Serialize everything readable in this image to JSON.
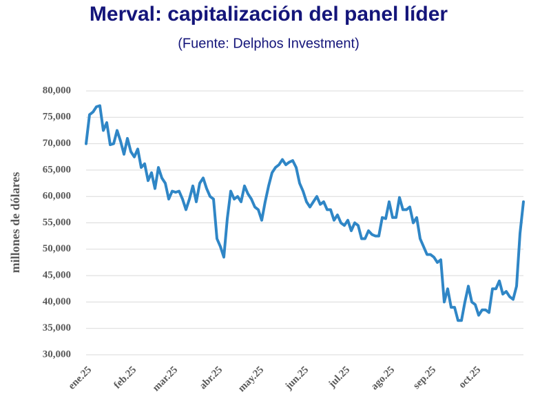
{
  "chart_data": {
    "type": "line",
    "title": "Merval: capitalización del panel líder",
    "subtitle": "(Fuente: Delphos Investment)",
    "y_label": "millones de dólares",
    "categories": [
      "ene.25",
      null,
      null,
      null,
      null,
      null,
      null,
      null,
      null,
      null,
      null,
      null,
      null,
      "feb.25",
      null,
      null,
      null,
      null,
      null,
      null,
      null,
      null,
      null,
      null,
      null,
      "mar.25",
      null,
      null,
      null,
      null,
      null,
      null,
      null,
      null,
      null,
      null,
      null,
      null,
      "abr.25",
      null,
      null,
      null,
      null,
      null,
      null,
      null,
      null,
      null,
      null,
      null,
      "may.25",
      null,
      null,
      null,
      null,
      null,
      null,
      null,
      null,
      null,
      null,
      null,
      null,
      "jun.25",
      null,
      null,
      null,
      null,
      null,
      null,
      null,
      null,
      null,
      null,
      null,
      "jul.25",
      null,
      null,
      null,
      null,
      null,
      null,
      null,
      null,
      null,
      null,
      null,
      null,
      "ago.25",
      null,
      null,
      null,
      null,
      null,
      null,
      null,
      null,
      null,
      null,
      null,
      "sep.25",
      null,
      null,
      null,
      null,
      null,
      null,
      null,
      null,
      null,
      null,
      null,
      null,
      "oct.25",
      null,
      null,
      null,
      null,
      null,
      null,
      null,
      null,
      null,
      null,
      null,
      null,
      null,
      null
    ],
    "series": [
      {
        "name": "Merval",
        "color": "#2f86c6",
        "values": [
          70000,
          75500,
          76000,
          77000,
          77200,
          72500,
          74000,
          69800,
          70000,
          72500,
          70500,
          68000,
          71000,
          68500,
          67500,
          69000,
          65500,
          66200,
          63000,
          64500,
          61500,
          65500,
          63500,
          62500,
          59500,
          61000,
          60800,
          61000,
          59500,
          57500,
          59500,
          62000,
          59000,
          62500,
          63500,
          61500,
          60000,
          59500,
          52000,
          50500,
          48500,
          55800,
          61000,
          59500,
          60000,
          59000,
          62000,
          60500,
          59500,
          58000,
          57500,
          55500,
          59000,
          62000,
          64500,
          65500,
          66000,
          67000,
          66000,
          66500,
          66800,
          65500,
          62500,
          61000,
          59000,
          58000,
          59000,
          60000,
          58500,
          59000,
          57500,
          57500,
          55500,
          56500,
          55000,
          54500,
          55500,
          53500,
          55000,
          54500,
          52000,
          52000,
          53500,
          52800,
          52500,
          52500,
          56000,
          55800,
          59000,
          56000,
          56000,
          59800,
          57500,
          57500,
          58000,
          55000,
          56000,
          52000,
          50500,
          49000,
          49000,
          48500,
          47500,
          48000,
          40000,
          42500,
          39000,
          39000,
          36500,
          36500,
          40000,
          43000,
          40000,
          39500,
          37500,
          38500,
          38500,
          38000,
          42500,
          42500,
          44000,
          41500,
          42000,
          41000,
          40500,
          43000,
          53000,
          59000
        ]
      }
    ],
    "ylim": [
      30000,
      80000
    ],
    "yticks": [
      {
        "value": 30000,
        "label": "30,000"
      },
      {
        "value": 35000,
        "label": "35,000"
      },
      {
        "value": 40000,
        "label": "40,000"
      },
      {
        "value": 45000,
        "label": "45,000"
      },
      {
        "value": 50000,
        "label": "50,000"
      },
      {
        "value": 55000,
        "label": "55,000"
      },
      {
        "value": 60000,
        "label": "60,000"
      },
      {
        "value": 65000,
        "label": "65,000"
      },
      {
        "value": 70000,
        "label": "70,000"
      },
      {
        "value": 75000,
        "label": "75,000"
      },
      {
        "value": 80000,
        "label": "80,000"
      }
    ],
    "grid": true
  }
}
